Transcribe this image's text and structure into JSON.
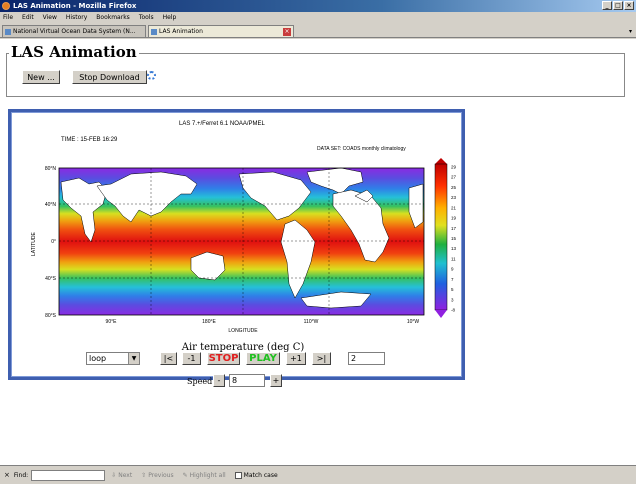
{
  "window": {
    "title": "LAS Animation - Mozilla Firefox",
    "min_glyph": "_",
    "max_glyph": "□",
    "close_glyph": "×"
  },
  "menu": [
    "File",
    "Edit",
    "View",
    "History",
    "Bookmarks",
    "Tools",
    "Help"
  ],
  "tabs": [
    {
      "label": "National Virtual Ocean Data System (N...",
      "active": false
    },
    {
      "label": "LAS Animation",
      "active": true
    }
  ],
  "tab_close_glyph": "×",
  "tab_dropdown_glyph": "▾",
  "page": {
    "heading": "LAS Animation",
    "new_label": "New ...",
    "stop_download_label": "Stop Download"
  },
  "plot": {
    "header": "LAS 7.+/Ferret 6.1      NOAA/PMEL",
    "time": "TIME : 15-FEB 16:29",
    "dataset": "DATA SET: COADS monthly climatology",
    "ylabel": "LATITUDE",
    "xlabel": "LONGITUDE",
    "caption": "Air temperature (deg C)",
    "lat_ticks": [
      "80°N",
      "40°N",
      "0°",
      "40°S",
      "80°S"
    ],
    "lon_ticks": [
      "90°E",
      "180°E",
      "110°W",
      "10°W"
    ],
    "colorbar_labels": [
      "29",
      "27",
      "25",
      "23",
      "21",
      "19",
      "17",
      "15",
      "13",
      "11",
      "9",
      "7",
      "5",
      "3",
      "-8"
    ],
    "colors": {
      "land": "#ffffff",
      "frame": "#3f5fb0"
    }
  },
  "controls": {
    "mode": "loop",
    "first": "|<",
    "back": "-1",
    "stop": "STOP",
    "play": "PLAY",
    "forward": "+1",
    "last": ">|",
    "frame": "2",
    "speed_label": "Speed",
    "speed_minus": "-",
    "speed_value": "8",
    "speed_plus": "+"
  },
  "findbar": {
    "close": "×",
    "find_label": "Find:",
    "next": "Next",
    "previous": "Previous",
    "highlight": "Highlight all",
    "match_case": "Match case"
  }
}
